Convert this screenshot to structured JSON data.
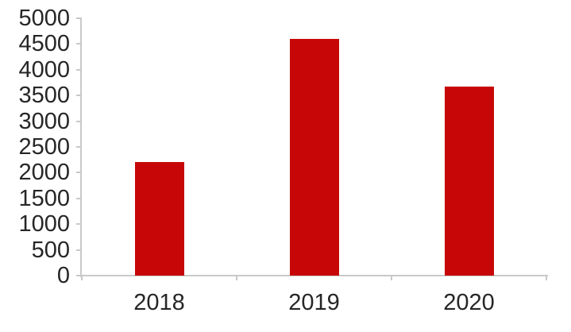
{
  "chart_data": {
    "type": "bar",
    "title": "",
    "xlabel": "",
    "ylabel": "",
    "categories": [
      "2018",
      "2019",
      "2020"
    ],
    "values": [
      2200,
      4600,
      3670
    ],
    "ylim": [
      0,
      5000
    ],
    "y_tick_step": 500,
    "y_ticks": [
      0,
      500,
      1000,
      1500,
      2000,
      2500,
      3000,
      3500,
      4000,
      4500,
      5000
    ],
    "grid": false,
    "legend": "none",
    "colors": {
      "bar": "#c70707",
      "axis": "#c9c9c9",
      "label": "#262626",
      "background": "#ffffff"
    }
  }
}
